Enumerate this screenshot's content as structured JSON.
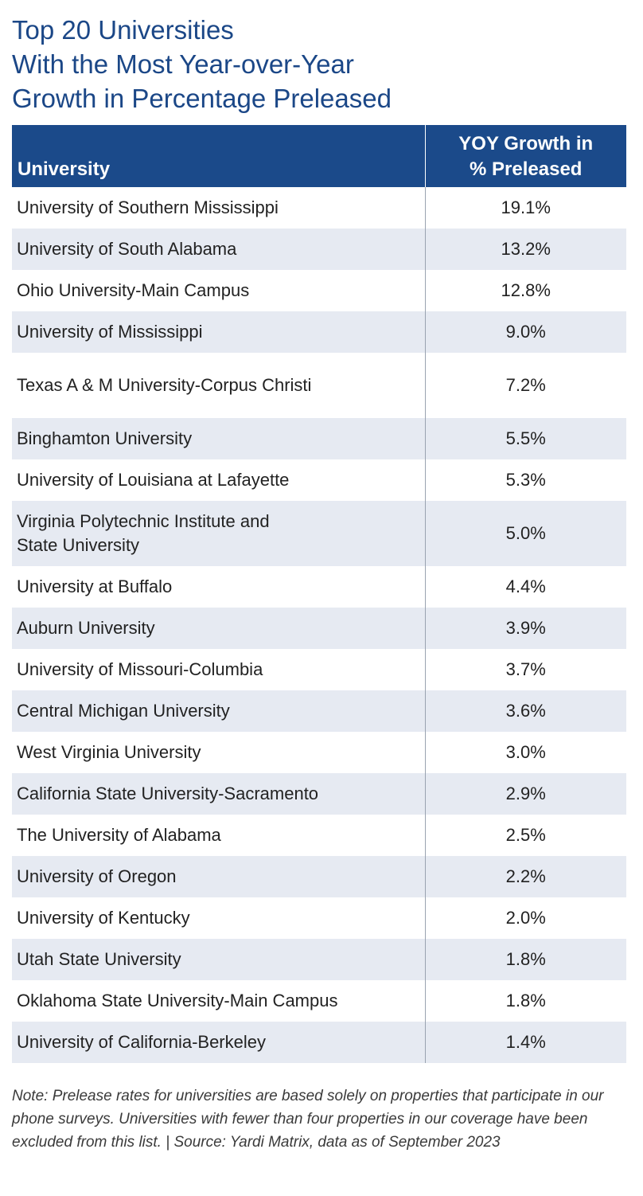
{
  "chart_data": {
    "type": "table",
    "title_lines": [
      "Top 20 Universities",
      "With the Most Year-over-Year",
      "Growth in Percentage Preleased"
    ],
    "columns": {
      "university": "University",
      "growth_line1": "YOY Growth in",
      "growth_line2": "% Preleased"
    },
    "rows": [
      {
        "university": "University of Southern Mississippi",
        "growth": "19.1%"
      },
      {
        "university": "University of South Alabama",
        "growth": "13.2%"
      },
      {
        "university": "Ohio University-Main Campus",
        "growth": "12.8%"
      },
      {
        "university": "University of Mississippi",
        "growth": "9.0%"
      },
      {
        "university": "Texas A & M University-Corpus Christi",
        "growth": "7.2%"
      },
      {
        "university": "Binghamton University",
        "growth": "5.5%"
      },
      {
        "university": "University of Louisiana at Lafayette",
        "growth": "5.3%"
      },
      {
        "university": "Virginia Polytechnic Institute and\nState University",
        "growth": "5.0%"
      },
      {
        "university": "University at Buffalo",
        "growth": "4.4%"
      },
      {
        "university": "Auburn University",
        "growth": "3.9%"
      },
      {
        "university": "University of Missouri-Columbia",
        "growth": "3.7%"
      },
      {
        "university": "Central Michigan University",
        "growth": "3.6%"
      },
      {
        "university": "West Virginia University",
        "growth": "3.0%"
      },
      {
        "university": "California State University-Sacramento",
        "growth": "2.9%"
      },
      {
        "university": "The University of Alabama",
        "growth": "2.5%"
      },
      {
        "university": "University of Oregon",
        "growth": "2.2%"
      },
      {
        "university": "University of Kentucky",
        "growth": "2.0%"
      },
      {
        "university": "Utah State University",
        "growth": "1.8%"
      },
      {
        "university": "Oklahoma State University-Main Campus",
        "growth": "1.8%"
      },
      {
        "university": "University of California-Berkeley",
        "growth": "1.4%"
      }
    ],
    "note": "Note: Prelease rates for universities are based solely on properties that participate in our phone surveys. Universities with fewer than four properties in our coverage have been excluded from this list. | Source: Yardi Matrix, data as of September 2023",
    "colors": {
      "title": "#1b4787",
      "header_bg": "#1b4a8a",
      "band": "#e6eaf2"
    }
  }
}
